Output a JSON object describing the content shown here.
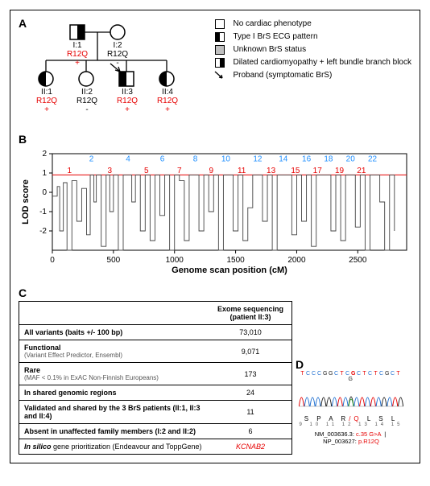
{
  "panelA": {
    "label": "A",
    "legend": [
      {
        "key": "sq",
        "text": "No cardiac phenotype"
      },
      {
        "key": "halfL",
        "text": "Type I BrS ECG pattern"
      },
      {
        "key": "grey",
        "text": "Unknown BrS status"
      },
      {
        "key": "halfR",
        "text": "Dilated cardiomyopathy + left bundle branch block"
      },
      {
        "key": "arrow",
        "text": "Proband (symptomatic BrS)"
      }
    ],
    "individuals": {
      "I1": {
        "id": "I:1",
        "geno": "R12Q +",
        "geno_color": "red"
      },
      "I2": {
        "id": "I:2",
        "geno": "R12Q -",
        "geno_color": "black"
      },
      "II1": {
        "id": "II:1",
        "geno": "R12Q +",
        "geno_color": "red"
      },
      "II2": {
        "id": "II:2",
        "geno": "R12Q -",
        "geno_color": "black"
      },
      "II3": {
        "id": "II:3",
        "geno": "R12Q +",
        "geno_color": "red"
      },
      "II4": {
        "id": "II:4",
        "geno": "R12Q +",
        "geno_color": "red"
      }
    }
  },
  "panelB": {
    "label": "B",
    "ylabel": "LOD score",
    "xlabel": "Genome scan position (cM)",
    "ylim": [
      -3,
      2
    ],
    "yticks": [
      -2,
      -1,
      0,
      1,
      2
    ],
    "xlim": [
      0,
      2900
    ],
    "xticks": [
      0,
      500,
      1000,
      1500,
      2000,
      2500
    ],
    "threshold": 0.9,
    "threshold_color": "#e60000",
    "chrom_labels": [
      {
        "t": "1",
        "x": 140,
        "c": "#e60000"
      },
      {
        "t": "2",
        "x": 320,
        "c": "#1f8fff"
      },
      {
        "t": "3",
        "x": 470,
        "c": "#e60000"
      },
      {
        "t": "4",
        "x": 620,
        "c": "#1f8fff"
      },
      {
        "t": "5",
        "x": 770,
        "c": "#e60000"
      },
      {
        "t": "6",
        "x": 900,
        "c": "#1f8fff"
      },
      {
        "t": "7",
        "x": 1040,
        "c": "#e60000"
      },
      {
        "t": "8",
        "x": 1170,
        "c": "#1f8fff"
      },
      {
        "t": "9",
        "x": 1300,
        "c": "#e60000"
      },
      {
        "t": "10",
        "x": 1420,
        "c": "#1f8fff"
      },
      {
        "t": "11",
        "x": 1550,
        "c": "#e60000"
      },
      {
        "t": "12",
        "x": 1680,
        "c": "#1f8fff"
      },
      {
        "t": "13",
        "x": 1790,
        "c": "#e60000"
      },
      {
        "t": "14",
        "x": 1890,
        "c": "#1f8fff"
      },
      {
        "t": "15",
        "x": 1990,
        "c": "#e60000"
      },
      {
        "t": "16",
        "x": 2080,
        "c": "#1f8fff"
      },
      {
        "t": "17",
        "x": 2170,
        "c": "#e60000"
      },
      {
        "t": "18",
        "x": 2260,
        "c": "#1f8fff"
      },
      {
        "t": "19",
        "x": 2350,
        "c": "#e60000"
      },
      {
        "t": "20",
        "x": 2440,
        "c": "#1f8fff"
      },
      {
        "t": "21",
        "x": 2530,
        "c": "#e60000"
      },
      {
        "t": "22",
        "x": 2620,
        "c": "#1f8fff"
      }
    ],
    "line_color": "#444444",
    "grid_color": "#bbbbbb",
    "background": "#ffffff",
    "trace": [
      [
        0,
        -0.2
      ],
      [
        40,
        0.3
      ],
      [
        60,
        -2.0
      ],
      [
        90,
        0.5
      ],
      [
        120,
        -3.0
      ],
      [
        160,
        0.6
      ],
      [
        200,
        -1.5
      ],
      [
        240,
        0.2
      ],
      [
        280,
        -2.2
      ],
      [
        310,
        0.9
      ],
      [
        340,
        -0.5
      ],
      [
        360,
        0.9
      ],
      [
        400,
        -2.8
      ],
      [
        440,
        0.9
      ],
      [
        470,
        -1.0
      ],
      [
        500,
        0.9
      ],
      [
        540,
        -3.0
      ],
      [
        580,
        0.9
      ],
      [
        620,
        0.9
      ],
      [
        650,
        -0.5
      ],
      [
        680,
        0.9
      ],
      [
        720,
        -2.0
      ],
      [
        760,
        0.9
      ],
      [
        800,
        -2.5
      ],
      [
        840,
        0.9
      ],
      [
        880,
        -1.2
      ],
      [
        920,
        0.9
      ],
      [
        960,
        -3.0
      ],
      [
        1000,
        0.9
      ],
      [
        1040,
        0.6
      ],
      [
        1080,
        -2.5
      ],
      [
        1120,
        0.9
      ],
      [
        1160,
        0.9
      ],
      [
        1200,
        -2.0
      ],
      [
        1240,
        0.9
      ],
      [
        1280,
        -1.0
      ],
      [
        1320,
        0.9
      ],
      [
        1360,
        -3.0
      ],
      [
        1400,
        0.9
      ],
      [
        1440,
        0.9
      ],
      [
        1480,
        -2.0
      ],
      [
        1520,
        0.9
      ],
      [
        1560,
        -2.5
      ],
      [
        1600,
        -0.8
      ],
      [
        1640,
        0.9
      ],
      [
        1680,
        0.9
      ],
      [
        1720,
        -1.5
      ],
      [
        1760,
        0.9
      ],
      [
        1800,
        -3.0
      ],
      [
        1840,
        0.9
      ],
      [
        1880,
        0.9
      ],
      [
        1920,
        0.9
      ],
      [
        1960,
        -2.2
      ],
      [
        2000,
        0.9
      ],
      [
        2040,
        -1.5
      ],
      [
        2080,
        0.9
      ],
      [
        2120,
        -2.8
      ],
      [
        2160,
        0.9
      ],
      [
        2200,
        0.9
      ],
      [
        2240,
        0.9
      ],
      [
        2280,
        -2.0
      ],
      [
        2320,
        0.9
      ],
      [
        2360,
        -2.5
      ],
      [
        2400,
        0.9
      ],
      [
        2440,
        0.9
      ],
      [
        2480,
        -1.8
      ],
      [
        2520,
        0.9
      ],
      [
        2560,
        -3.0
      ],
      [
        2600,
        0.9
      ],
      [
        2640,
        0.9
      ],
      [
        2680,
        -0.5
      ],
      [
        2720,
        -3.0
      ],
      [
        2760,
        0.9
      ],
      [
        2800,
        -2.0
      ]
    ]
  },
  "panelC": {
    "label": "C",
    "header": "Exome sequencing\n(patient II:3)",
    "rows": [
      {
        "label": "All variants (baits +/- 100 bp)",
        "value": "73,010"
      },
      {
        "label": "Functional",
        "sub": "(Variant Effect Predictor, Ensembl)",
        "value": "9,071"
      },
      {
        "label": "Rare",
        "sub": "(MAF < 0.1% in ExAC Non-Finnish Europeans)",
        "value": "173"
      },
      {
        "label": "In shared genomic regions",
        "value": "24"
      },
      {
        "label": "Validated and shared by the 3 BrS patients (II:1, II:3 and II:4)",
        "value": "11"
      },
      {
        "label": "Absent in unaffected family members (I:2 and II:2)",
        "value": "6"
      },
      {
        "label_html": "<span class='bold-ital'>In silico</span> gene prioritization (Endeavour and ToppGene)",
        "value_html": "<span class='red-italic'>KCNAB2</span>"
      }
    ]
  },
  "panelD": {
    "label": "D",
    "seq": [
      "T",
      "C",
      "C",
      "C",
      "G",
      "G",
      "C",
      "T",
      "C",
      "G",
      "C",
      "T",
      "C",
      "T",
      "C",
      "G",
      "C",
      "T",
      "G"
    ],
    "seq_colors": {
      "A": "#2aa02a",
      "C": "#1f6fd0",
      "G": "#222222",
      "T": "#e60000"
    },
    "variant_idx": 9,
    "aa": [
      "S",
      "P",
      "A",
      "R/Q",
      "L",
      "S",
      "L"
    ],
    "aa_pos": [
      "9",
      "10",
      "11",
      "12",
      "13",
      "14",
      "15"
    ],
    "transcript": "NM_003636.3:",
    "cdna": "c.35 G>A",
    "protein_pre": "NP_003627:",
    "protein": "p.R12Q"
  }
}
